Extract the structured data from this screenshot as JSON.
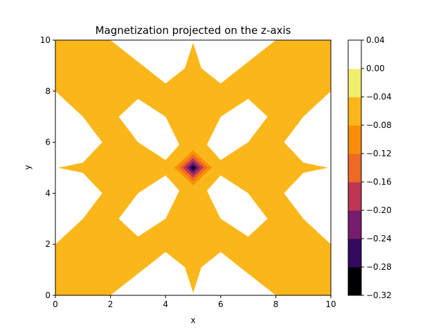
{
  "chart_data": {
    "type": "heatmap",
    "subtype": "filled-contour",
    "title": "Magnetization projected on the z-axis",
    "xlabel": "x",
    "ylabel": "y",
    "xlim": [
      0,
      10
    ],
    "ylim": [
      0,
      10
    ],
    "x_ticks": [
      0,
      2,
      4,
      6,
      8,
      10
    ],
    "y_ticks": [
      0,
      2,
      4,
      6,
      8,
      10
    ],
    "grid": false,
    "colormap": "inferno",
    "colorbar": {
      "levels": [
        -0.32,
        -0.28,
        -0.24,
        -0.2,
        -0.16,
        -0.12,
        -0.08,
        -0.04,
        0.0,
        0.04
      ],
      "tick_labels": [
        "0.04",
        "0.00",
        "−0.04",
        "−0.08",
        "−0.12",
        "−0.16",
        "−0.20",
        "−0.24",
        "−0.28",
        "−0.32"
      ],
      "band_colors": [
        "#000004",
        "#320a5e",
        "#781c6d",
        "#bc3754",
        "#ed6925",
        "#f98e09",
        "#fbb61a",
        "#f1ed6f",
        "#ffffff"
      ]
    },
    "background_band_color": "#fbb61a",
    "positive_band_color": "#f1ed6f",
    "regions": [
      {
        "band": "0.00 to 0.04",
        "points": [
          [
            2,
            10
          ],
          [
            4,
            8.3
          ],
          [
            4.7,
            8.9
          ],
          [
            5,
            9.9
          ],
          [
            5.3,
            8.9
          ],
          [
            6,
            8.3
          ],
          [
            8,
            10
          ]
        ]
      },
      {
        "band": "0.00 to 0.04",
        "points": [
          [
            2,
            0
          ],
          [
            4,
            1.7
          ],
          [
            4.7,
            1.1
          ],
          [
            5,
            0.1
          ],
          [
            5.3,
            1.1
          ],
          [
            6,
            1.7
          ],
          [
            8,
            0
          ]
        ]
      },
      {
        "band": "0.00 to 0.04",
        "points": [
          [
            0,
            2
          ],
          [
            1,
            3
          ],
          [
            1.7,
            4
          ],
          [
            1,
            4.8
          ],
          [
            0.1,
            5
          ],
          [
            1,
            5.2
          ],
          [
            1.7,
            6
          ],
          [
            1,
            7
          ],
          [
            0,
            8
          ]
        ]
      },
      {
        "band": "0.00 to 0.04",
        "points": [
          [
            10,
            2
          ],
          [
            9,
            3
          ],
          [
            8.3,
            4
          ],
          [
            9,
            4.8
          ],
          [
            9.9,
            5
          ],
          [
            9,
            5.2
          ],
          [
            8.3,
            6
          ],
          [
            9,
            7
          ],
          [
            10,
            8
          ]
        ]
      },
      {
        "band": "0.00 to 0.04",
        "points": [
          [
            2.3,
            7.0
          ],
          [
            3.0,
            7.7
          ],
          [
            4.0,
            7.0
          ],
          [
            4.5,
            5.9
          ],
          [
            4.0,
            5.3
          ],
          [
            3.0,
            6.0
          ]
        ]
      },
      {
        "band": "0.00 to 0.04",
        "points": [
          [
            7.7,
            7.0
          ],
          [
            7.0,
            7.7
          ],
          [
            6.0,
            7.0
          ],
          [
            5.5,
            5.9
          ],
          [
            6.0,
            5.3
          ],
          [
            7.0,
            6.0
          ]
        ]
      },
      {
        "band": "0.00 to 0.04",
        "points": [
          [
            2.3,
            3.0
          ],
          [
            3.0,
            2.3
          ],
          [
            4.0,
            3.0
          ],
          [
            4.5,
            4.1
          ],
          [
            4.0,
            4.7
          ],
          [
            3.0,
            4.0
          ]
        ]
      },
      {
        "band": "0.00 to 0.04",
        "points": [
          [
            7.7,
            3.0
          ],
          [
            7.0,
            2.3
          ],
          [
            6.0,
            3.0
          ],
          [
            5.5,
            4.1
          ],
          [
            6.0,
            4.7
          ],
          [
            7.0,
            4.0
          ]
        ]
      }
    ],
    "center_well": {
      "center": [
        5,
        5
      ],
      "bands": [
        {
          "band": "-0.08 to -0.04",
          "half_width": [
            0.85,
            0.85
          ]
        },
        {
          "band": "-0.12 to -0.08",
          "half_width": [
            0.68,
            0.68
          ]
        },
        {
          "band": "-0.16 to -0.12",
          "half_width": [
            0.52,
            0.52
          ]
        },
        {
          "band": "-0.20 to -0.16",
          "half_width": [
            0.38,
            0.38
          ]
        },
        {
          "band": "-0.24 to -0.20",
          "half_width": [
            0.25,
            0.25
          ]
        },
        {
          "band": "-0.28 to -0.24",
          "half_width": [
            0.14,
            0.14
          ]
        },
        {
          "band": "-0.32 to -0.28",
          "half_width": [
            0.06,
            0.06
          ]
        }
      ],
      "min_value": -0.32
    }
  }
}
